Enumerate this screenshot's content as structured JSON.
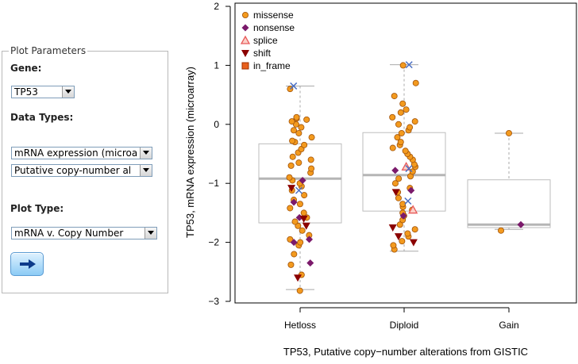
{
  "plot_parameters": {
    "title": "Plot Parameters",
    "gene_label": "Gene:",
    "gene_value": "TP53",
    "data_types_label": "Data Types:",
    "data_type_1": "mRNA expression (microa",
    "data_type_2": "Putative copy-number al",
    "plot_type_label": "Plot Type:",
    "plot_type_value": "mRNA v. Copy Number",
    "go_icon": "arrow-right-icon"
  },
  "chart_data": {
    "type": "box",
    "ylabel": "TP53, mRNA expression (microarray)",
    "xlabel": "TP53, Putative copy−number alterations from GISTIC",
    "categories": [
      "Hetloss",
      "Diploid",
      "Gain"
    ],
    "ylim": [
      -3,
      2
    ],
    "yticks": [
      2,
      1,
      0,
      -1,
      -2,
      -3
    ],
    "legend": [
      "missense",
      "nonsense",
      "splice",
      "shift",
      "in_frame"
    ],
    "legend_placement": "top-left",
    "colors": {
      "missense": "#f39a1e",
      "nonsense": "#7b1a6b",
      "splice": "#e85a5a",
      "shift": "#8b0000",
      "in_frame": "#e8601c",
      "box": "#bdbdbd",
      "median": "#b5b5b5",
      "x_mark": "#4a6fc4"
    },
    "boxes": [
      {
        "category": "Hetloss",
        "whisker_low": -2.8,
        "q1": -1.67,
        "median": -0.92,
        "q3": -0.33,
        "whisker_high": 0.65
      },
      {
        "category": "Diploid",
        "whisker_low": -2.15,
        "q1": -1.47,
        "median": -0.86,
        "q3": -0.14,
        "whisker_high": 1.01
      },
      {
        "category": "Gain",
        "whisker_low": -1.78,
        "q1": -1.75,
        "median": -1.7,
        "q3": -0.94,
        "whisker_high": -0.15
      }
    ],
    "points": {
      "Hetloss": {
        "missense": [
          -2.82,
          -2.55,
          -2.38,
          -2.2,
          -2.05,
          -2.0,
          -1.95,
          -1.88,
          -1.8,
          -1.72,
          -1.65,
          -1.58,
          -1.5,
          -1.42,
          -1.35,
          -1.28,
          -1.2,
          -1.12,
          -1.05,
          -1.0,
          -0.95,
          -0.9,
          -0.82,
          -0.75,
          -0.7,
          -0.65,
          -0.6,
          -0.55,
          -0.48,
          -0.42,
          -0.35,
          -0.3,
          -0.28,
          -0.22,
          -0.15,
          -0.1,
          -0.05,
          0.0,
          0.05,
          0.08,
          0.1,
          0.12,
          0.6
        ],
        "nonsense": [
          -2.35,
          -2.0,
          -1.95,
          -1.58,
          -1.32,
          -0.95
        ],
        "shift": [
          -2.6,
          -1.72,
          -1.6,
          -1.08
        ],
        "splice": [],
        "x": [
          0.65,
          -1.12
        ]
      },
      "Diploid": {
        "missense": [
          -2.12,
          -2.05,
          -1.98,
          -1.9,
          -1.85,
          -1.78,
          -1.7,
          -1.62,
          -1.55,
          -1.5,
          -1.45,
          -1.4,
          -1.35,
          -1.25,
          -1.15,
          -1.08,
          -1.0,
          -0.92,
          -0.88,
          -0.8,
          -0.72,
          -0.68,
          -0.6,
          -0.55,
          -0.5,
          -0.45,
          -0.4,
          -0.35,
          -0.3,
          -0.22,
          -0.15,
          -0.1,
          -0.05,
          0.0,
          0.05,
          0.12,
          0.2,
          0.25,
          0.35,
          0.48,
          0.7,
          1.0
        ],
        "nonsense": [
          -1.55,
          -0.78,
          -1.12
        ],
        "shift": [
          -2.0,
          -1.9,
          -1.75,
          -1.15
        ],
        "splice": [
          -1.45,
          -0.72
        ],
        "x": [
          1.01,
          -0.75,
          -1.3
        ]
      },
      "Gain": {
        "missense": [
          -0.15,
          -1.8
        ],
        "nonsense": [
          -1.7
        ],
        "shift": [],
        "splice": [],
        "x": []
      }
    }
  }
}
